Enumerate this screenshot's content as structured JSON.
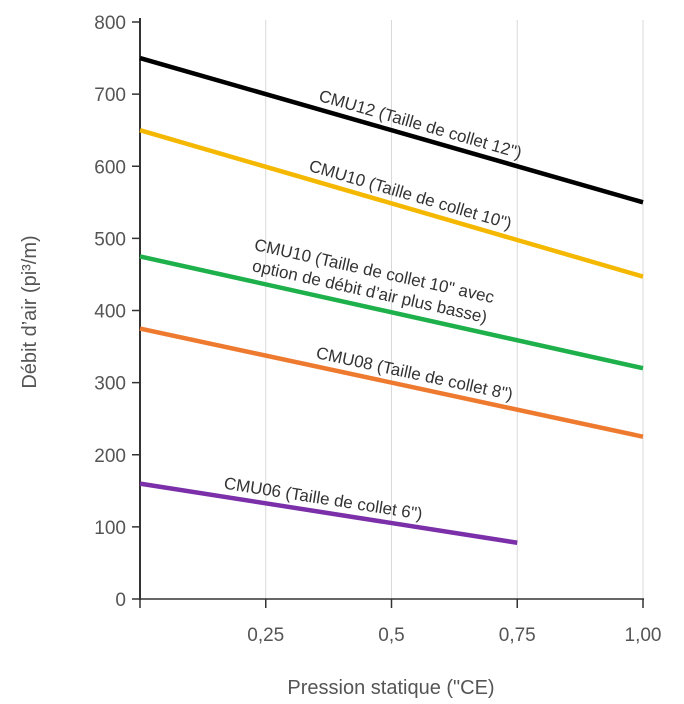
{
  "chart_data": {
    "type": "line",
    "xlabel": "Pression statique (\"CE)",
    "ylabel": "Débit d’air (pi³/m)",
    "xlim": [
      0,
      1.0
    ],
    "ylim": [
      0,
      800
    ],
    "x_ticks": [
      0.25,
      0.5,
      0.75,
      1.0
    ],
    "x_tick_labels": [
      "0,25",
      "0,5",
      "0,75",
      "1,00"
    ],
    "y_ticks": [
      0,
      100,
      200,
      300,
      400,
      500,
      600,
      700,
      800
    ],
    "y_tick_labels": [
      "0",
      "100",
      "200",
      "300",
      "400",
      "500",
      "600",
      "700",
      "800"
    ],
    "grid": {
      "vertical": true,
      "horizontal": false
    },
    "series": [
      {
        "name": "CMU12 (Taille de collet 12\")",
        "label_lines": [
          "CMU12 (Taille de collet 12\")"
        ],
        "color": "#000000",
        "x": [
          0,
          1.0
        ],
        "y": [
          750,
          550
        ]
      },
      {
        "name": "CMU10 (Taille de collet 10\")",
        "label_lines": [
          "CMU10 (Taille de collet 10\")"
        ],
        "color": "#F5B800",
        "x": [
          0,
          1.0
        ],
        "y": [
          650,
          447
        ]
      },
      {
        "name": "CMU10 (Taille de collet 10\" avec option de débit d’air plus basse)",
        "label_lines": [
          "CMU10 (Taille de collet 10\" avec",
          "option de débit d’air plus basse)"
        ],
        "color": "#1DB04B",
        "x": [
          0,
          1.0
        ],
        "y": [
          475,
          320
        ]
      },
      {
        "name": "CMU08 (Taille de collet 8\")",
        "label_lines": [
          "CMU08 (Taille de collet 8\")"
        ],
        "color": "#EE7A30",
        "x": [
          0,
          1.0
        ],
        "y": [
          375,
          225
        ]
      },
      {
        "name": "CMU06 (Taille de collet 6\")",
        "label_lines": [
          "CMU06 (Taille de collet 6\")"
        ],
        "color": "#7B2FA8",
        "x": [
          0,
          0.75
        ],
        "y": [
          160,
          78
        ]
      }
    ]
  }
}
